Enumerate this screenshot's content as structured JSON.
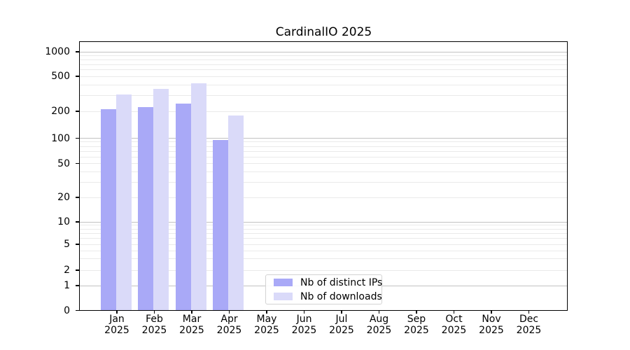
{
  "chart_data": {
    "type": "bar",
    "title": "CardinalIO 2025",
    "categories": [
      "Jan",
      "Feb",
      "Mar",
      "Apr",
      "May",
      "Jun",
      "Jul",
      "Aug",
      "Sep",
      "Oct",
      "Nov",
      "Dec"
    ],
    "year_label": "2025",
    "series": [
      {
        "name": "Nb of distinct IPs",
        "color": "#a9a9f7",
        "values": [
          210,
          225,
          245,
          96,
          0,
          0,
          0,
          0,
          0,
          0,
          0,
          0
        ]
      },
      {
        "name": "Nb of downloads",
        "color": "#dadaf9",
        "values": [
          310,
          360,
          415,
          178,
          0,
          0,
          0,
          0,
          0,
          0,
          0,
          0
        ]
      }
    ],
    "yticks": [
      0,
      1,
      2,
      5,
      10,
      20,
      50,
      100,
      200,
      500,
      1000
    ],
    "ylim": [
      0,
      1350
    ],
    "yscale": "log-like (symlog/asinh), linear below 1",
    "xlabel": "",
    "ylabel": "",
    "grid": "horizontal, major lines at powers of 10, minor lines at 2-9 per decade",
    "legend_position": "lower center inside plot"
  },
  "colors": {
    "background": "#ffffff",
    "bar_distinct_ips": "#a9a9f7",
    "bar_downloads": "#dadaf9",
    "grid_major": "#c2c2c2",
    "grid_minor": "#eaeaea",
    "axis": "#000000",
    "legend_border": "#d3d3d3"
  }
}
